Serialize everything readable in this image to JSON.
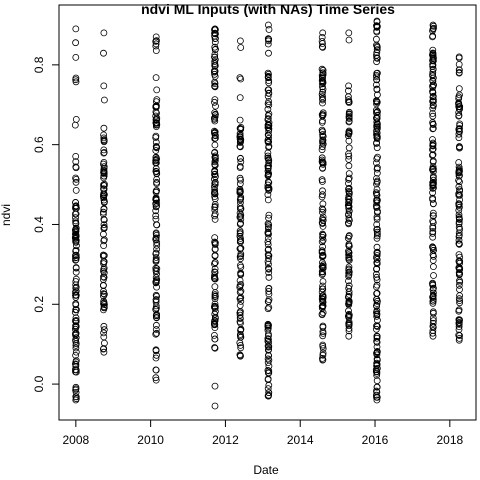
{
  "chart_data": {
    "type": "scatter",
    "title": "ndvi ML Inputs (with NAs) Time Series",
    "xlabel": "Date",
    "ylabel": "ndvi",
    "x_ticks": [
      "2008",
      "2010",
      "2012",
      "2014",
      "2016",
      "2018"
    ],
    "y_ticks": [
      "0.0",
      "0.2",
      "0.4",
      "0.6",
      "0.8"
    ],
    "xlim": [
      2007.55,
      2018.7
    ],
    "ylim": [
      -0.09,
      0.95
    ],
    "marker": "open-circle",
    "point_color": "#000000",
    "clusters": [
      {
        "x": 2008.0,
        "y_min": -0.04,
        "y_max": 0.89,
        "dense_min": -0.02,
        "dense_max": 0.56
      },
      {
        "x": 2008.75,
        "y_min": 0.08,
        "y_max": 0.88,
        "dense_min": 0.18,
        "dense_max": 0.62
      },
      {
        "x": 2010.15,
        "y_min": 0.01,
        "y_max": 0.87,
        "dense_min": 0.08,
        "dense_max": 0.72
      },
      {
        "x": 2011.72,
        "y_min": 0.09,
        "y_max": 0.89,
        "dense_min": 0.14,
        "dense_max": 0.86
      },
      {
        "x": 2012.4,
        "y_min": 0.07,
        "y_max": 0.86,
        "dense_min": 0.12,
        "dense_max": 0.66
      },
      {
        "x": 2013.15,
        "y_min": -0.03,
        "y_max": 0.9,
        "dense_min": 0.0,
        "dense_max": 0.78
      },
      {
        "x": 2014.6,
        "y_min": 0.06,
        "y_max": 0.88,
        "dense_min": 0.1,
        "dense_max": 0.8
      },
      {
        "x": 2015.3,
        "y_min": 0.12,
        "y_max": 0.88,
        "dense_min": 0.16,
        "dense_max": 0.72
      },
      {
        "x": 2016.05,
        "y_min": -0.04,
        "y_max": 0.91,
        "dense_min": -0.02,
        "dense_max": 0.86
      },
      {
        "x": 2017.55,
        "y_min": 0.12,
        "y_max": 0.9,
        "dense_min": 0.16,
        "dense_max": 0.84
      },
      {
        "x": 2018.25,
        "y_min": 0.11,
        "y_max": 0.82,
        "dense_min": 0.14,
        "dense_max": 0.72
      }
    ],
    "outliers": [
      {
        "x": 2011.72,
        "y": -0.005
      },
      {
        "x": 2011.72,
        "y": -0.055
      }
    ],
    "grid": false,
    "legend": "none"
  }
}
